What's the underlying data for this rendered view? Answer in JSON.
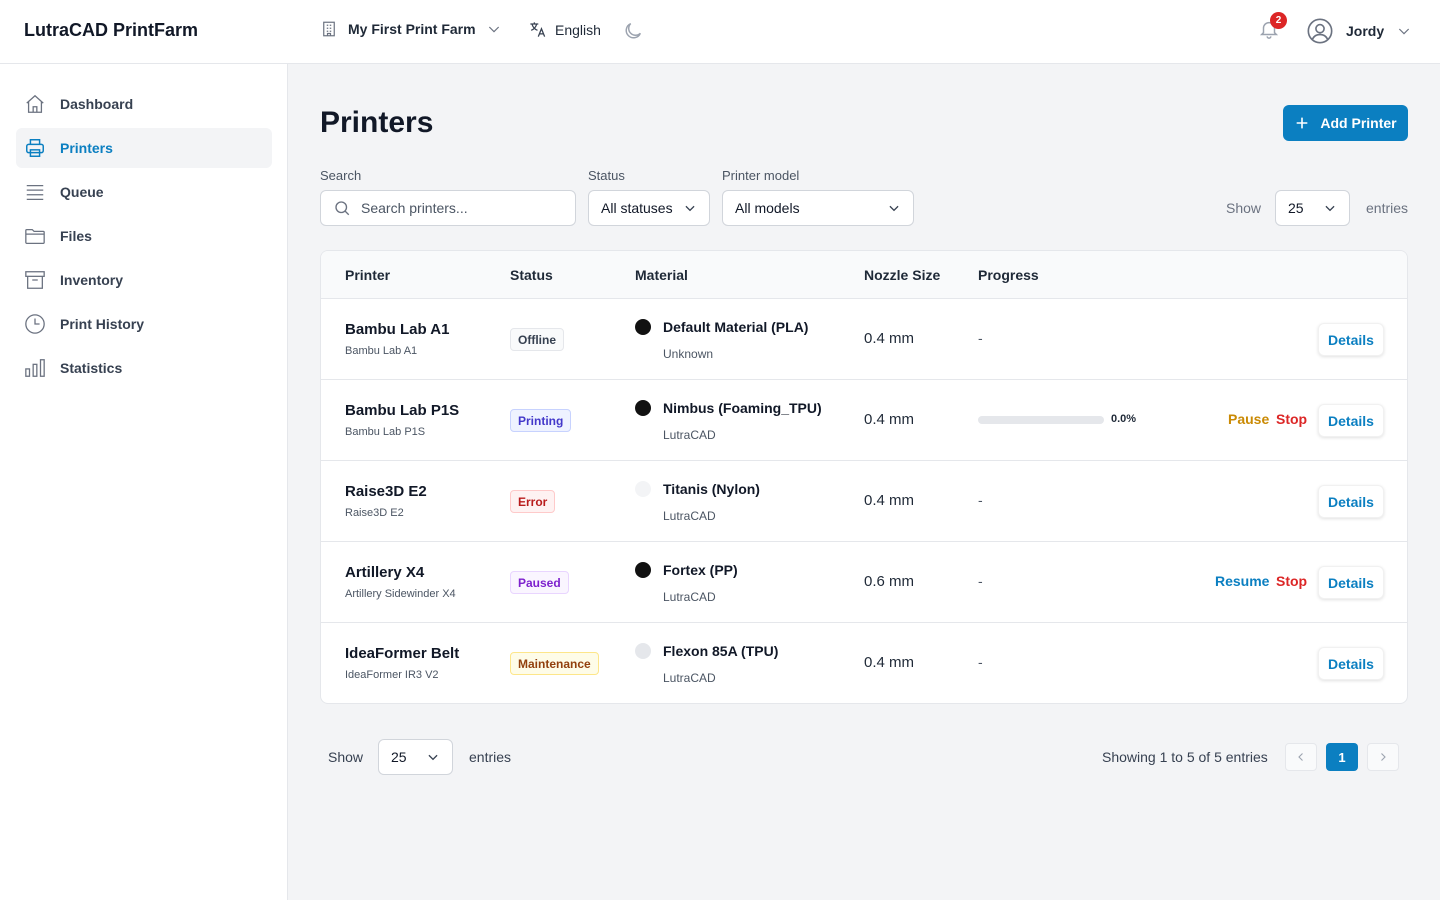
{
  "app": {
    "title": "LutraCAD PrintFarm"
  },
  "header": {
    "farm": "My First Print Farm",
    "language": "English",
    "notifications_count": "2",
    "user": "Jordy"
  },
  "sidebar": {
    "items": [
      {
        "label": "Dashboard",
        "icon": "home-icon"
      },
      {
        "label": "Printers",
        "icon": "printer-icon",
        "active": true
      },
      {
        "label": "Queue",
        "icon": "queue-icon"
      },
      {
        "label": "Files",
        "icon": "folder-icon"
      },
      {
        "label": "Inventory",
        "icon": "archive-icon"
      },
      {
        "label": "Print History",
        "icon": "clock-icon"
      },
      {
        "label": "Statistics",
        "icon": "bar-chart-icon"
      }
    ]
  },
  "main": {
    "title": "Printers",
    "add_button": "Add Printer",
    "filters": {
      "search_label": "Search",
      "search_placeholder": "Search printers...",
      "status_label": "Status",
      "status_value": "All statuses",
      "model_label": "Printer model",
      "model_value": "All models",
      "show_label": "Show",
      "show_value": "25",
      "entries_label": "entries"
    },
    "table": {
      "columns": [
        "Printer",
        "Status",
        "Material",
        "Nozzle Size",
        "Progress"
      ],
      "rows": [
        {
          "name": "Bambu Lab A1",
          "model": "Bambu Lab A1",
          "status": "Offline",
          "material": "Default Material (PLA)",
          "material_brand": "Unknown",
          "material_color": "#111111",
          "nozzle": "0.4 mm",
          "progress": "-",
          "actions": [
            "Details"
          ]
        },
        {
          "name": "Bambu Lab P1S",
          "model": "Bambu Lab P1S",
          "status": "Printing",
          "material": "Nimbus (Foaming_TPU)",
          "material_brand": "LutraCAD",
          "material_color": "#111111",
          "nozzle": "0.4 mm",
          "progress": "0.0%",
          "progress_value": 0.0,
          "actions": [
            "Pause",
            "Stop",
            "Details"
          ]
        },
        {
          "name": "Raise3D E2",
          "model": "Raise3D E2",
          "status": "Error",
          "material": "Titanis (Nylon)",
          "material_brand": "LutraCAD",
          "material_color": "#f3f4f6",
          "nozzle": "0.4 mm",
          "progress": "-",
          "actions": [
            "Details"
          ]
        },
        {
          "name": "Artillery X4",
          "model": "Artillery Sidewinder X4",
          "status": "Paused",
          "material": "Fortex (PP)",
          "material_brand": "LutraCAD",
          "material_color": "#111111",
          "nozzle": "0.6 mm",
          "progress": "-",
          "actions": [
            "Resume",
            "Stop",
            "Details"
          ]
        },
        {
          "name": "IdeaFormer Belt",
          "model": "IdeaFormer IR3 V2",
          "status": "Maintenance",
          "material": "Flexon 85A (TPU)",
          "material_brand": "LutraCAD",
          "material_color": "#e5e7eb",
          "nozzle": "0.4 mm",
          "progress": "-",
          "actions": [
            "Details"
          ]
        }
      ]
    },
    "footer": {
      "show_label": "Show",
      "show_value": "25",
      "entries_label": "entries",
      "info": "Showing 1 to 5 of 5 entries",
      "current_page": "1"
    }
  },
  "colors": {
    "accent": "#0b7fc1",
    "offline": "#374151",
    "printing": "#4338ca",
    "error": "#b91c1c",
    "paused": "#7e22ce",
    "maintenance": "#92400e",
    "pause_action": "#ca8a04",
    "stop_action": "#dc2626"
  }
}
